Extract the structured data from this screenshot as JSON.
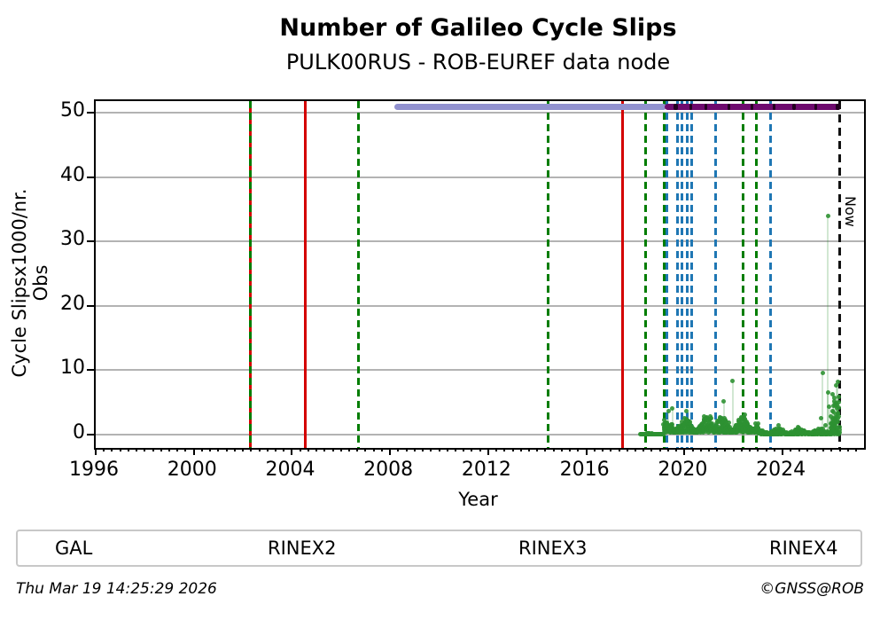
{
  "header": {
    "title": "Number of Galileo Cycle Slips",
    "subtitle": "PULK00RUS - ROB-EUREF data node"
  },
  "now_label": "Now",
  "footer": {
    "timestamp": "Thu Mar 19 14:25:29 2026",
    "credit": "©GNSS@ROB"
  },
  "legend": {
    "items": [
      {
        "label": "GAL",
        "color": "#2e9132"
      },
      {
        "label": "RINEX2",
        "color": "#9191cf"
      },
      {
        "label": "RINEX3",
        "color": "#6e0a6e"
      },
      {
        "label": "RINEX4",
        "color": "#23001f"
      }
    ]
  },
  "chart_data": {
    "type": "scatter",
    "title": "Number of Galileo Cycle Slips",
    "subtitle": "PULK00RUS - ROB-EUREF data node",
    "xlabel": "Year",
    "ylabel": "Cycle Slipsx1000/nr. Obs",
    "xlim": [
      1996,
      2027.32
    ],
    "ylim": [
      -2.07,
      51.8
    ],
    "xticks": [
      1996,
      2000,
      2004,
      2008,
      2012,
      2016,
      2020,
      2024
    ],
    "yticks": [
      0,
      10,
      20,
      30,
      40,
      50
    ],
    "x_minor_step": 0.33333,
    "grid": "horizontal-grey",
    "grid_color": "#b3b3b3",
    "point_color": "#2e9132",
    "series_name": "GAL",
    "gal_outliers": [
      [
        2019.35,
        3.6
      ],
      [
        2019.5,
        4.0
      ],
      [
        2021.6,
        5.1
      ],
      [
        2021.97,
        8.3
      ],
      [
        2025.63,
        9.6
      ],
      [
        2025.75,
        1.4
      ],
      [
        2025.85,
        34.0
      ],
      [
        2025.85,
        6.6
      ],
      [
        2025.9,
        4.3
      ],
      [
        2026.05,
        6.3
      ],
      [
        2026.1,
        5.2
      ],
      [
        2026.2,
        7.6
      ],
      [
        2026.25,
        8.2
      ],
      [
        2026.28,
        5.9
      ],
      [
        2025.55,
        2.5
      ]
    ],
    "gal_bands": [
      {
        "x0": 2018.2,
        "x1": 2019.15,
        "base": 0.04,
        "spread": 0.12,
        "pow": 1.2,
        "n": 90
      },
      {
        "x0": 2019.15,
        "x1": 2021.3,
        "base": 0.3,
        "spread": 2.4,
        "pow": 1.35,
        "n": 270
      },
      {
        "x0": 2021.3,
        "x1": 2023.0,
        "base": 0.3,
        "spread": 2.6,
        "pow": 1.35,
        "n": 220
      },
      {
        "x0": 2023.0,
        "x1": 2025.95,
        "base": 0.05,
        "spread": 1.0,
        "pow": 1.8,
        "n": 260
      },
      {
        "x0": 2025.95,
        "x1": 2026.32,
        "base": 0.1,
        "spread": 4.8,
        "pow": 1.7,
        "n": 60
      }
    ],
    "events": {
      "red_solid": [
        2002.32,
        2004.53,
        2017.48
      ],
      "green_dashed": [
        2002.32,
        2006.72,
        2014.45,
        2018.4,
        2019.18,
        2022.4,
        2022.94
      ],
      "blue_dashed": [
        2019.27,
        2019.72,
        2019.9,
        2020.12,
        2020.3,
        2021.27,
        2023.52
      ],
      "now_line": 2026.33,
      "red_color": "#d40000",
      "green_color": "#007d00",
      "blue_color": "#1f77b4",
      "now_color": "#111111"
    },
    "rinex_bars": [
      {
        "name": "RINEX2",
        "start": 2008.17,
        "end": 2019.25,
        "color": "#9191cf"
      },
      {
        "name": "RINEX3",
        "start": 2019.2,
        "end": 2026.33,
        "color": "#6e0a6e"
      }
    ],
    "rinex4_segments": [
      [
        2019.55,
        2019.73
      ],
      [
        2020.2,
        2020.32
      ],
      [
        2020.8,
        2020.93
      ],
      [
        2021.75,
        2021.88
      ],
      [
        2022.7,
        2022.82
      ],
      [
        2023.6,
        2023.72
      ],
      [
        2024.4,
        2024.55
      ],
      [
        2025.3,
        2025.42
      ],
      [
        2026.18,
        2026.33
      ]
    ],
    "rinex4_color": "#23001f"
  }
}
